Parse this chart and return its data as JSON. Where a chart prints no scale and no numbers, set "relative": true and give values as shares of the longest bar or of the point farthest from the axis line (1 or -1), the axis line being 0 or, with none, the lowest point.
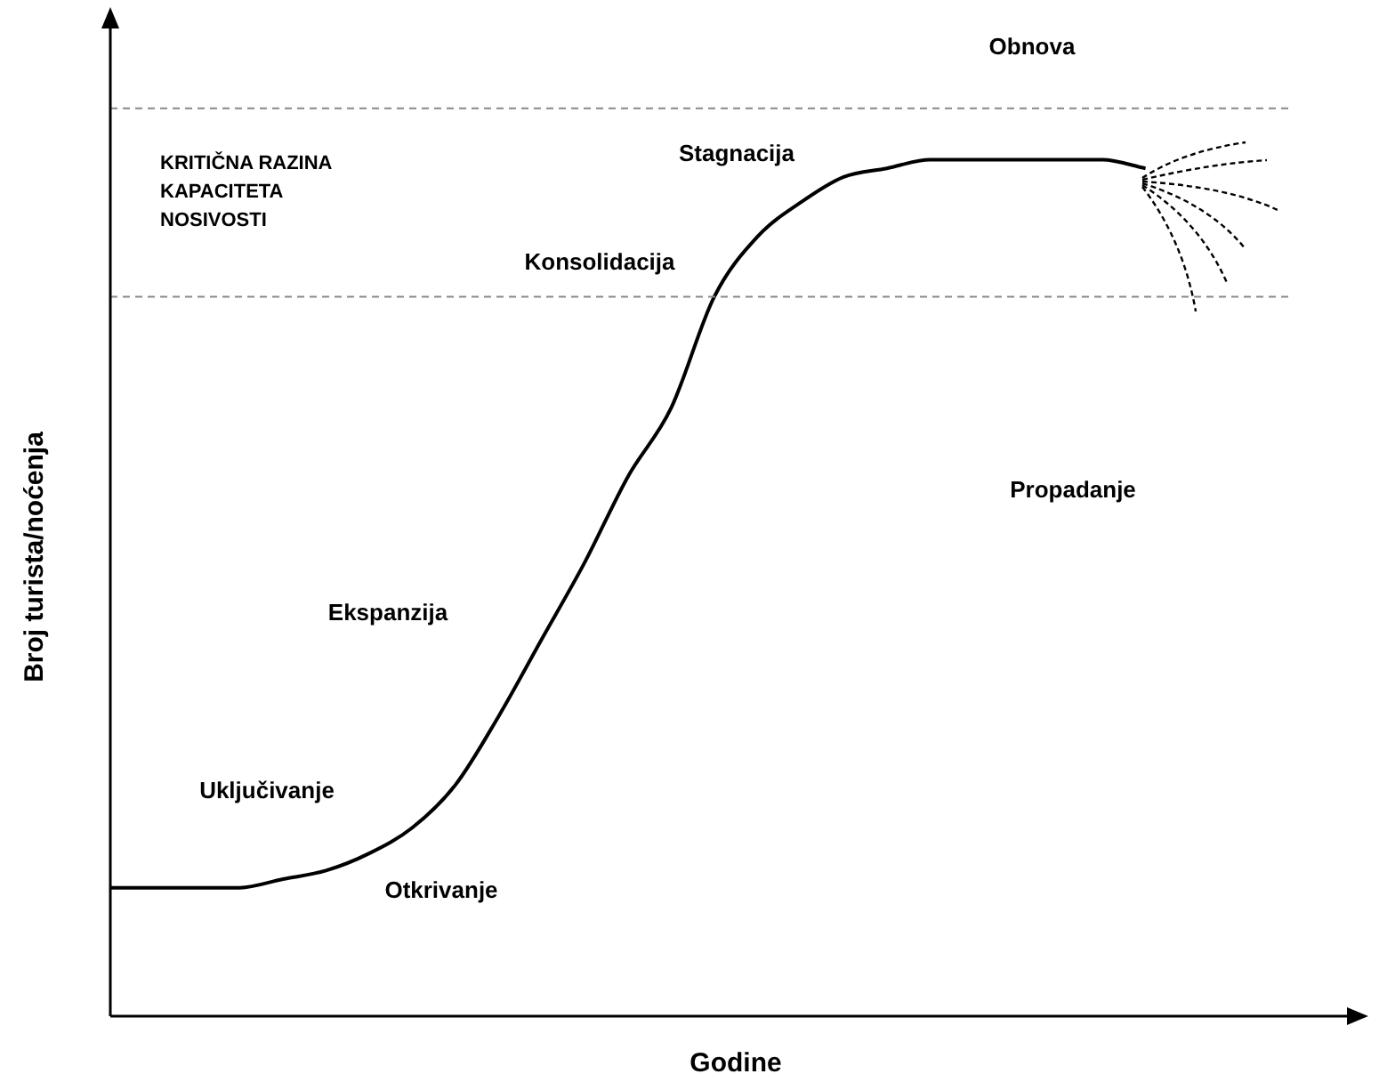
{
  "chart_data": {
    "type": "line",
    "relative": true,
    "xlabel": "Godine",
    "ylabel": "Broj turista/noćenja",
    "categories": [
      null,
      null,
      null,
      null,
      null,
      null,
      null,
      null,
      null,
      null,
      null,
      null,
      null,
      null,
      null,
      null,
      null,
      null,
      null,
      null,
      null,
      null,
      null,
      null,
      null,
      null,
      null,
      null,
      null,
      null
    ],
    "series": [
      {
        "color": "#000000",
        "values": [
          0.15,
          0.15,
          0.15,
          0.15,
          0.16,
          0.17,
          0.19,
          0.22,
          0.27,
          0.35,
          0.44,
          0.53,
          0.63,
          0.71,
          0.84,
          0.91,
          0.95,
          0.98,
          0.99,
          1,
          1,
          1,
          1,
          1,
          0.99,
          null,
          null,
          null,
          null,
          null
        ]
      }
    ],
    "ref_lines": [
      {
        "axis": "y",
        "value": 0.84,
        "color": "#888888",
        "line_style": "dashed"
      },
      {
        "axis": "y",
        "value": 1.06,
        "color": "#888888",
        "line_style": "dashed"
      }
    ],
    "annotations": [
      "Obnova",
      "Stagnacija",
      "Konsolidacija",
      "Ekspanzija",
      "Propadanje",
      "Uključivanje",
      "Otkrivanje",
      "KRITIČNA RAZINA KAPACITETA NOSIVOSTI"
    ],
    "marker": "none",
    "line_style": "solid",
    "legend": false
  }
}
